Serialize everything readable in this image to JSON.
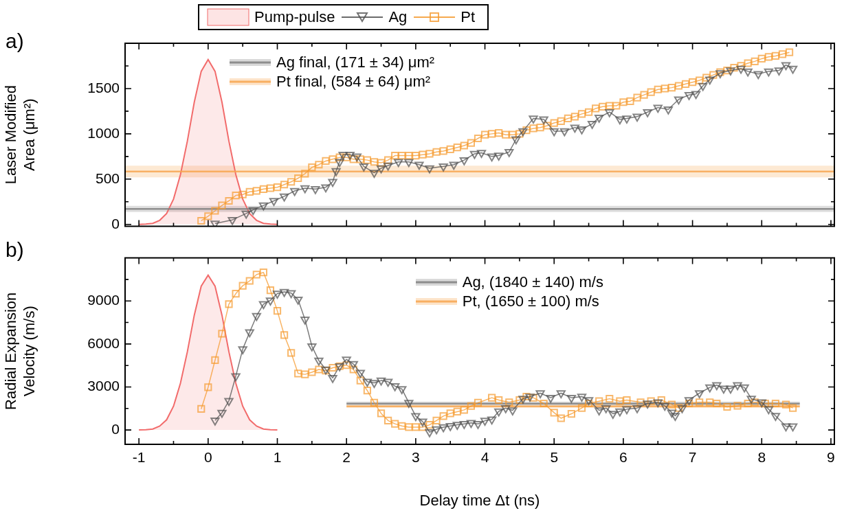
{
  "chart_data": [
    {
      "type": "line",
      "ylabel": "Laser Modified Area (μm²)",
      "annotations": [
        "a)"
      ],
      "legend": "top",
      "tick_labels": "y",
      "xlim": [
        -1.2,
        9.05
      ],
      "xticks": [
        -1,
        {
          "value": -0.5,
          "label": null
        },
        0,
        {
          "value": 0.5,
          "label": null
        },
        1,
        {
          "value": 1.5,
          "label": null
        },
        2,
        {
          "value": 2.5,
          "label": null
        },
        3,
        {
          "value": 3.5,
          "label": null
        },
        4,
        {
          "value": 4.5,
          "label": null
        },
        5,
        {
          "value": 5.5,
          "label": null
        },
        6,
        {
          "value": 6.5,
          "label": null
        },
        7,
        {
          "value": 7.5,
          "label": null
        },
        8,
        {
          "value": 8.5,
          "label": null
        },
        9
      ],
      "ylim": [
        -20,
        2000
      ],
      "yticks": [
        0,
        {
          "value": 250,
          "label": null
        },
        500,
        {
          "value": 750,
          "label": null
        },
        1000,
        {
          "value": 1250,
          "label": null
        },
        1500,
        {
          "value": 1750,
          "label": null
        }
      ],
      "series": [
        {
          "type": "area",
          "name": "Pump-pulse",
          "color": "#f26b6b",
          "x": [
            -1,
            -0.9,
            -0.8,
            -0.7,
            -0.6,
            -0.5,
            -0.4,
            -0.3,
            -0.2,
            -0.1,
            0,
            0.1,
            0.2,
            0.3,
            0.4,
            0.5,
            0.6,
            0.7,
            0.8,
            0.9,
            1
          ],
          "values": [
            0,
            3,
            12,
            45,
            120,
            280,
            550,
            920,
            1350,
            1690,
            1820,
            1690,
            1350,
            920,
            550,
            280,
            120,
            45,
            12,
            3,
            0
          ]
        },
        {
          "name": "Ag",
          "color": "#505050",
          "marker": "triangle",
          "x": [
            0.1,
            0.35,
            0.55,
            0.65,
            0.8,
            0.95,
            1.1,
            1.25,
            1.4,
            1.55,
            1.7,
            1.8,
            1.85,
            1.9,
            1.95,
            2.05,
            2.15,
            2.25,
            2.4,
            2.5,
            2.6,
            2.75,
            2.9,
            3.05,
            3.2,
            3.4,
            3.55,
            3.7,
            3.85,
            3.95,
            4.1,
            4.2,
            4.35,
            4.45,
            4.55,
            4.7,
            4.85,
            5.0,
            5.15,
            5.3,
            5.4,
            5.55,
            5.65,
            5.8,
            5.95,
            6.05,
            6.2,
            6.35,
            6.5,
            6.65,
            6.8,
            6.95,
            7.05,
            7.15,
            7.25,
            7.4,
            7.55,
            7.7,
            7.8,
            7.95,
            8.1,
            8.25,
            8.35,
            8.45
          ],
          "values": [
            10,
            50,
            120,
            160,
            210,
            260,
            310,
            370,
            400,
            390,
            410,
            470,
            590,
            690,
            770,
            770,
            750,
            640,
            570,
            620,
            650,
            690,
            690,
            660,
            620,
            640,
            660,
            710,
            780,
            790,
            750,
            760,
            800,
            940,
            1030,
            1170,
            1160,
            1030,
            1030,
            1070,
            1050,
            1110,
            1180,
            1240,
            1160,
            1170,
            1190,
            1240,
            1290,
            1270,
            1380,
            1430,
            1440,
            1530,
            1600,
            1670,
            1700,
            1720,
            1690,
            1660,
            1690,
            1700,
            1760,
            1720
          ]
        },
        {
          "name": "Pt",
          "color": "#f59a2e",
          "marker": "square",
          "x": [
            -0.1,
            0,
            0.1,
            0.2,
            0.3,
            0.4,
            0.5,
            0.6,
            0.7,
            0.8,
            0.9,
            1.0,
            1.1,
            1.2,
            1.3,
            1.4,
            1.5,
            1.6,
            1.7,
            1.8,
            1.9,
            2.0,
            2.1,
            2.2,
            2.3,
            2.4,
            2.5,
            2.6,
            2.7,
            2.8,
            2.9,
            3.0,
            3.1,
            3.2,
            3.3,
            3.4,
            3.5,
            3.6,
            3.7,
            3.8,
            3.9,
            4.0,
            4.1,
            4.2,
            4.3,
            4.4,
            4.5,
            4.6,
            4.7,
            4.8,
            4.9,
            5.0,
            5.1,
            5.2,
            5.3,
            5.4,
            5.5,
            5.6,
            5.7,
            5.8,
            5.9,
            6.0,
            6.1,
            6.2,
            6.3,
            6.4,
            6.5,
            6.6,
            6.7,
            6.8,
            6.9,
            7.0,
            7.1,
            7.2,
            7.3,
            7.4,
            7.5,
            7.6,
            7.7,
            7.8,
            7.9,
            8.0,
            8.1,
            8.2,
            8.3,
            8.4
          ],
          "values": [
            40,
            90,
            150,
            210,
            260,
            320,
            330,
            360,
            370,
            390,
            400,
            410,
            440,
            470,
            510,
            560,
            630,
            660,
            700,
            720,
            740,
            740,
            720,
            720,
            710,
            690,
            680,
            710,
            760,
            760,
            760,
            760,
            770,
            780,
            800,
            810,
            830,
            850,
            870,
            900,
            950,
            990,
            1000,
            1010,
            990,
            990,
            1000,
            1040,
            1060,
            1070,
            1090,
            1120,
            1140,
            1170,
            1190,
            1220,
            1240,
            1280,
            1300,
            1310,
            1310,
            1350,
            1360,
            1400,
            1430,
            1460,
            1490,
            1500,
            1510,
            1530,
            1550,
            1570,
            1590,
            1620,
            1650,
            1680,
            1700,
            1730,
            1750,
            1780,
            1800,
            1830,
            1850,
            1860,
            1880,
            1900
          ]
        },
        {
          "name": "Ag final, (171 ± 34) μm²",
          "color": "#808080",
          "x": [
            -1.2,
            9.05
          ],
          "values": [
            171,
            171
          ],
          "lower": [
            137,
            137
          ],
          "upper": [
            205,
            205
          ]
        },
        {
          "name": "Pt final, (584 ± 64) μm²",
          "color": "#f7a650",
          "x": [
            -1.2,
            9.05
          ],
          "values": [
            584,
            584
          ],
          "lower": [
            520,
            520
          ],
          "upper": [
            648,
            648
          ]
        }
      ]
    },
    {
      "type": "line",
      "ylabel": "Radial Expansion Velocity (m/s)",
      "xlabel": "Delay time Δt (ns)",
      "annotations": [
        "b)"
      ],
      "legend": "top right",
      "xlim": [
        -1.2,
        9.05
      ],
      "xticks": [
        -1,
        {
          "value": -0.5,
          "label": null
        },
        0,
        {
          "value": 0.5,
          "label": null
        },
        1,
        {
          "value": 1.5,
          "label": null
        },
        2,
        {
          "value": 2.5,
          "label": null
        },
        3,
        {
          "value": 3.5,
          "label": null
        },
        4,
        {
          "value": 4.5,
          "label": null
        },
        5,
        {
          "value": 5.5,
          "label": null
        },
        6,
        {
          "value": 6.5,
          "label": null
        },
        7,
        {
          "value": 7.5,
          "label": null
        },
        8,
        {
          "value": 8.5,
          "label": null
        },
        9
      ],
      "ylim": [
        -1000,
        12000
      ],
      "yticks": [
        0,
        {
          "value": 1500,
          "label": null
        },
        3000,
        {
          "value": 4500,
          "label": null
        },
        6000,
        {
          "value": 7500,
          "label": null
        },
        9000,
        {
          "value": 10500,
          "label": null
        }
      ],
      "series": [
        {
          "type": "area",
          "color": "#f26b6b",
          "x": [
            -1,
            -0.9,
            -0.8,
            -0.7,
            -0.6,
            -0.5,
            -0.4,
            -0.3,
            -0.2,
            -0.1,
            0,
            0.1,
            0.2,
            0.3,
            0.4,
            0.5,
            0.6,
            0.7,
            0.8,
            0.9,
            1
          ],
          "values": [
            0,
            20,
            70,
            270,
            710,
            1660,
            3260,
            5460,
            8010,
            10030,
            10800,
            10030,
            8010,
            5460,
            3260,
            1660,
            710,
            270,
            70,
            20,
            0
          ]
        },
        {
          "color": "#505050",
          "marker": "triangle",
          "x": [
            0.1,
            0.2,
            0.3,
            0.4,
            0.5,
            0.6,
            0.7,
            0.8,
            0.9,
            1.0,
            1.1,
            1.2,
            1.3,
            1.4,
            1.5,
            1.6,
            1.7,
            1.8,
            1.9,
            2.0,
            2.1,
            2.2,
            2.3,
            2.4,
            2.5,
            2.6,
            2.7,
            2.8,
            2.9,
            3.0,
            3.1,
            3.2,
            3.3,
            3.4,
            3.5,
            3.6,
            3.7,
            3.8,
            3.9,
            4.0,
            4.1,
            4.2,
            4.3,
            4.4,
            4.55,
            4.65,
            4.8,
            4.95,
            5.1,
            5.25,
            5.4,
            5.5,
            5.65,
            5.75,
            5.85,
            5.95,
            6.05,
            6.2,
            6.35,
            6.5,
            6.6,
            6.7,
            6.75,
            6.85,
            6.95,
            7.1,
            7.25,
            7.35,
            7.45,
            7.55,
            7.65,
            7.75,
            7.85,
            8.0,
            8.1,
            8.2,
            8.35,
            8.45
          ],
          "values": [
            660,
            1200,
            2030,
            3760,
            5640,
            6820,
            7960,
            8780,
            9040,
            9510,
            9630,
            9550,
            9090,
            7700,
            5840,
            4840,
            4220,
            3630,
            4450,
            4920,
            4600,
            3990,
            3370,
            3290,
            3450,
            3370,
            3060,
            2860,
            1900,
            970,
            590,
            -150,
            50,
            200,
            280,
            360,
            430,
            500,
            420,
            650,
            740,
            1300,
            1530,
            1370,
            2180,
            2330,
            2570,
            2250,
            2570,
            2250,
            2330,
            2090,
            1370,
            1530,
            1130,
            1300,
            1450,
            1530,
            1850,
            1930,
            1690,
            1210,
            990,
            1530,
            2090,
            2570,
            2970,
            3130,
            2890,
            2890,
            3130,
            2970,
            2180,
            1930,
            1450,
            990,
            260,
            260
          ]
        },
        {
          "color": "#f59a2e",
          "marker": "square",
          "x": [
            -0.1,
            0,
            0.1,
            0.2,
            0.3,
            0.4,
            0.5,
            0.6,
            0.7,
            0.8,
            0.9,
            1.0,
            1.1,
            1.2,
            1.3,
            1.4,
            1.5,
            1.6,
            1.7,
            1.8,
            1.9,
            2.0,
            2.1,
            2.2,
            2.3,
            2.4,
            2.5,
            2.6,
            2.7,
            2.8,
            2.9,
            3.0,
            3.1,
            3.2,
            3.3,
            3.4,
            3.5,
            3.6,
            3.7,
            3.8,
            3.9,
            4.1,
            4.2,
            4.35,
            4.5,
            4.6,
            4.7,
            4.85,
            5.0,
            5.1,
            5.25,
            5.4,
            5.5,
            5.65,
            5.8,
            5.95,
            6.05,
            6.25,
            6.4,
            6.55,
            6.7,
            6.8,
            6.95,
            7.1,
            7.25,
            7.35,
            7.5,
            7.65,
            7.8,
            7.9,
            8.05,
            8.2,
            8.35,
            8.45
          ],
          "values": [
            1470,
            2980,
            4870,
            6720,
            8780,
            9510,
            10060,
            10400,
            10840,
            10990,
            9750,
            8310,
            6620,
            5380,
            3940,
            3880,
            4030,
            4220,
            4140,
            4340,
            4450,
            4530,
            4220,
            3450,
            2750,
            1900,
            1160,
            660,
            430,
            280,
            200,
            200,
            200,
            360,
            660,
            970,
            1160,
            1280,
            1400,
            1670,
            1900,
            2250,
            2090,
            1930,
            2090,
            2330,
            2250,
            1850,
            1210,
            820,
            1130,
            1530,
            1850,
            2010,
            2180,
            2010,
            2090,
            1930,
            2010,
            2090,
            1770,
            1530,
            1850,
            1930,
            1930,
            1850,
            1610,
            1690,
            1850,
            1930,
            1850,
            1850,
            1770,
            1530
          ]
        },
        {
          "name": "Ag, (1840 ± 140) m/s",
          "color": "#808080",
          "x": [
            2,
            8.55
          ],
          "values": [
            1840,
            1840
          ],
          "lower": [
            1700,
            1700
          ],
          "upper": [
            1980,
            1980
          ]
        },
        {
          "name": "Pt, (1650 ± 100) m/s",
          "color": "#f7a650",
          "x": [
            2,
            8.55
          ],
          "values": [
            1650,
            1650
          ],
          "lower": [
            1550,
            1550
          ],
          "upper": [
            1750,
            1750
          ]
        }
      ]
    }
  ]
}
